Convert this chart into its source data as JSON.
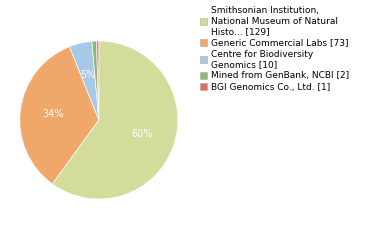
{
  "labels": [
    "Smithsonian Institution,\nNational Museum of Natural\nHisto... [129]",
    "Generic Commercial Labs [73]",
    "Centre for Biodiversity\nGenomics [10]",
    "Mined from GenBank, NCBI [2]",
    "BGI Genomics Co., Ltd. [1]"
  ],
  "values": [
    129,
    73,
    10,
    2,
    1
  ],
  "colors": [
    "#d4dc9b",
    "#f0a86a",
    "#a8c8e8",
    "#8db870",
    "#d97060"
  ],
  "background_color": "#ffffff",
  "pct_threshold": 3.0,
  "font_size": 7.0,
  "legend_fontsize": 6.5
}
